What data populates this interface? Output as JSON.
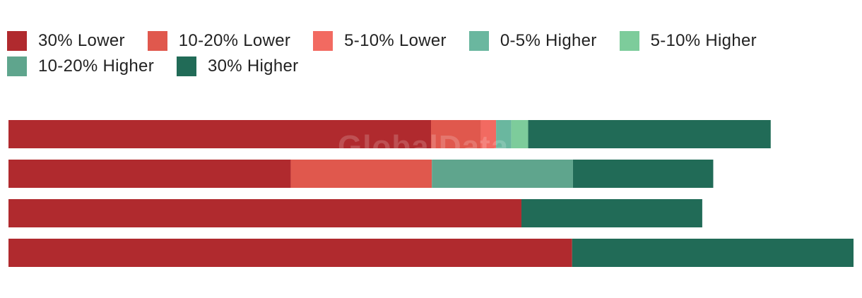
{
  "watermark": "GlobalData",
  "chart_data": {
    "type": "bar",
    "orientation": "horizontal",
    "stacked": true,
    "grid": false,
    "legend_position": "top",
    "categories": [
      "",
      "",
      "",
      ""
    ],
    "xlim": [
      0,
      100
    ],
    "series": [
      {
        "name": "30% Lower",
        "color": "#b02a2e",
        "values": [
          50.0,
          33.4,
          60.7,
          66.7
        ]
      },
      {
        "name": "10-20% Lower",
        "color": "#e0584d",
        "values": [
          5.9,
          16.7,
          0,
          0
        ]
      },
      {
        "name": "5-10% Lower",
        "color": "#f26a61",
        "values": [
          1.8,
          0,
          0,
          0
        ]
      },
      {
        "name": "0-5% Higher",
        "color": "#6ab79f",
        "values": [
          1.8,
          0,
          0,
          0
        ]
      },
      {
        "name": "5-10% Higher",
        "color": "#7dcc9b",
        "values": [
          2.0,
          0,
          0,
          0
        ]
      },
      {
        "name": "10-20% Higher",
        "color": "#5fa58d",
        "values": [
          0,
          16.7,
          0,
          0
        ]
      },
      {
        "name": "30% Higher",
        "color": "#216b57",
        "values": [
          28.7,
          16.6,
          21.4,
          33.3
        ]
      }
    ]
  }
}
